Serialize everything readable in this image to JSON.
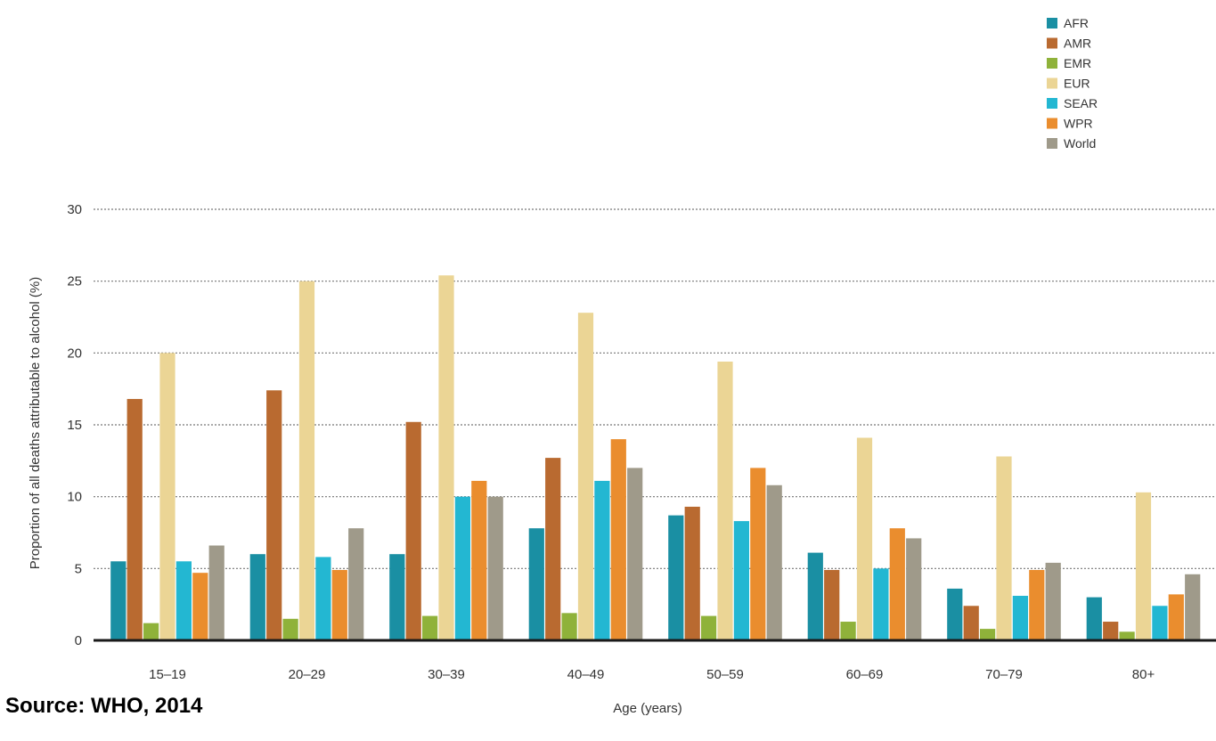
{
  "source_note": "Source: WHO, 2014",
  "chart_data": {
    "type": "bar",
    "categories": [
      "15–19",
      "20–29",
      "30–39",
      "40–49",
      "50–59",
      "60–69",
      "70–79",
      "80+"
    ],
    "series": [
      {
        "name": "AFR",
        "color": "#1a8fa3",
        "values": [
          5.5,
          6.0,
          6.0,
          7.8,
          8.7,
          6.1,
          3.6,
          3.0
        ]
      },
      {
        "name": "AMR",
        "color": "#b96a30",
        "values": [
          16.8,
          17.4,
          15.2,
          12.7,
          9.3,
          4.9,
          2.4,
          1.3
        ]
      },
      {
        "name": "EMR",
        "color": "#8fb23a",
        "values": [
          1.2,
          1.5,
          1.7,
          1.9,
          1.7,
          1.3,
          0.8,
          0.6
        ]
      },
      {
        "name": "EUR",
        "color": "#ebd595",
        "values": [
          20.0,
          25.0,
          25.4,
          22.8,
          19.4,
          14.1,
          12.8,
          10.3
        ]
      },
      {
        "name": "SEAR",
        "color": "#23b7d2",
        "values": [
          5.5,
          5.8,
          10.0,
          11.1,
          8.3,
          5.0,
          3.1,
          2.4
        ]
      },
      {
        "name": "WPR",
        "color": "#ea8d2e",
        "values": [
          4.7,
          4.9,
          11.1,
          14.0,
          12.0,
          7.8,
          4.9,
          3.2
        ]
      },
      {
        "name": "World",
        "color": "#9f9a8a",
        "values": [
          6.6,
          7.8,
          10.0,
          12.0,
          10.8,
          7.1,
          5.4,
          4.6
        ]
      }
    ],
    "xlabel": "Age (years)",
    "ylabel": "Proportion of all deaths attributable to alcohol (%)",
    "ylim": [
      0,
      30
    ],
    "yticks": [
      0,
      5,
      10,
      15,
      20,
      25,
      30
    ],
    "grid": true,
    "legend_position": "top-right"
  }
}
